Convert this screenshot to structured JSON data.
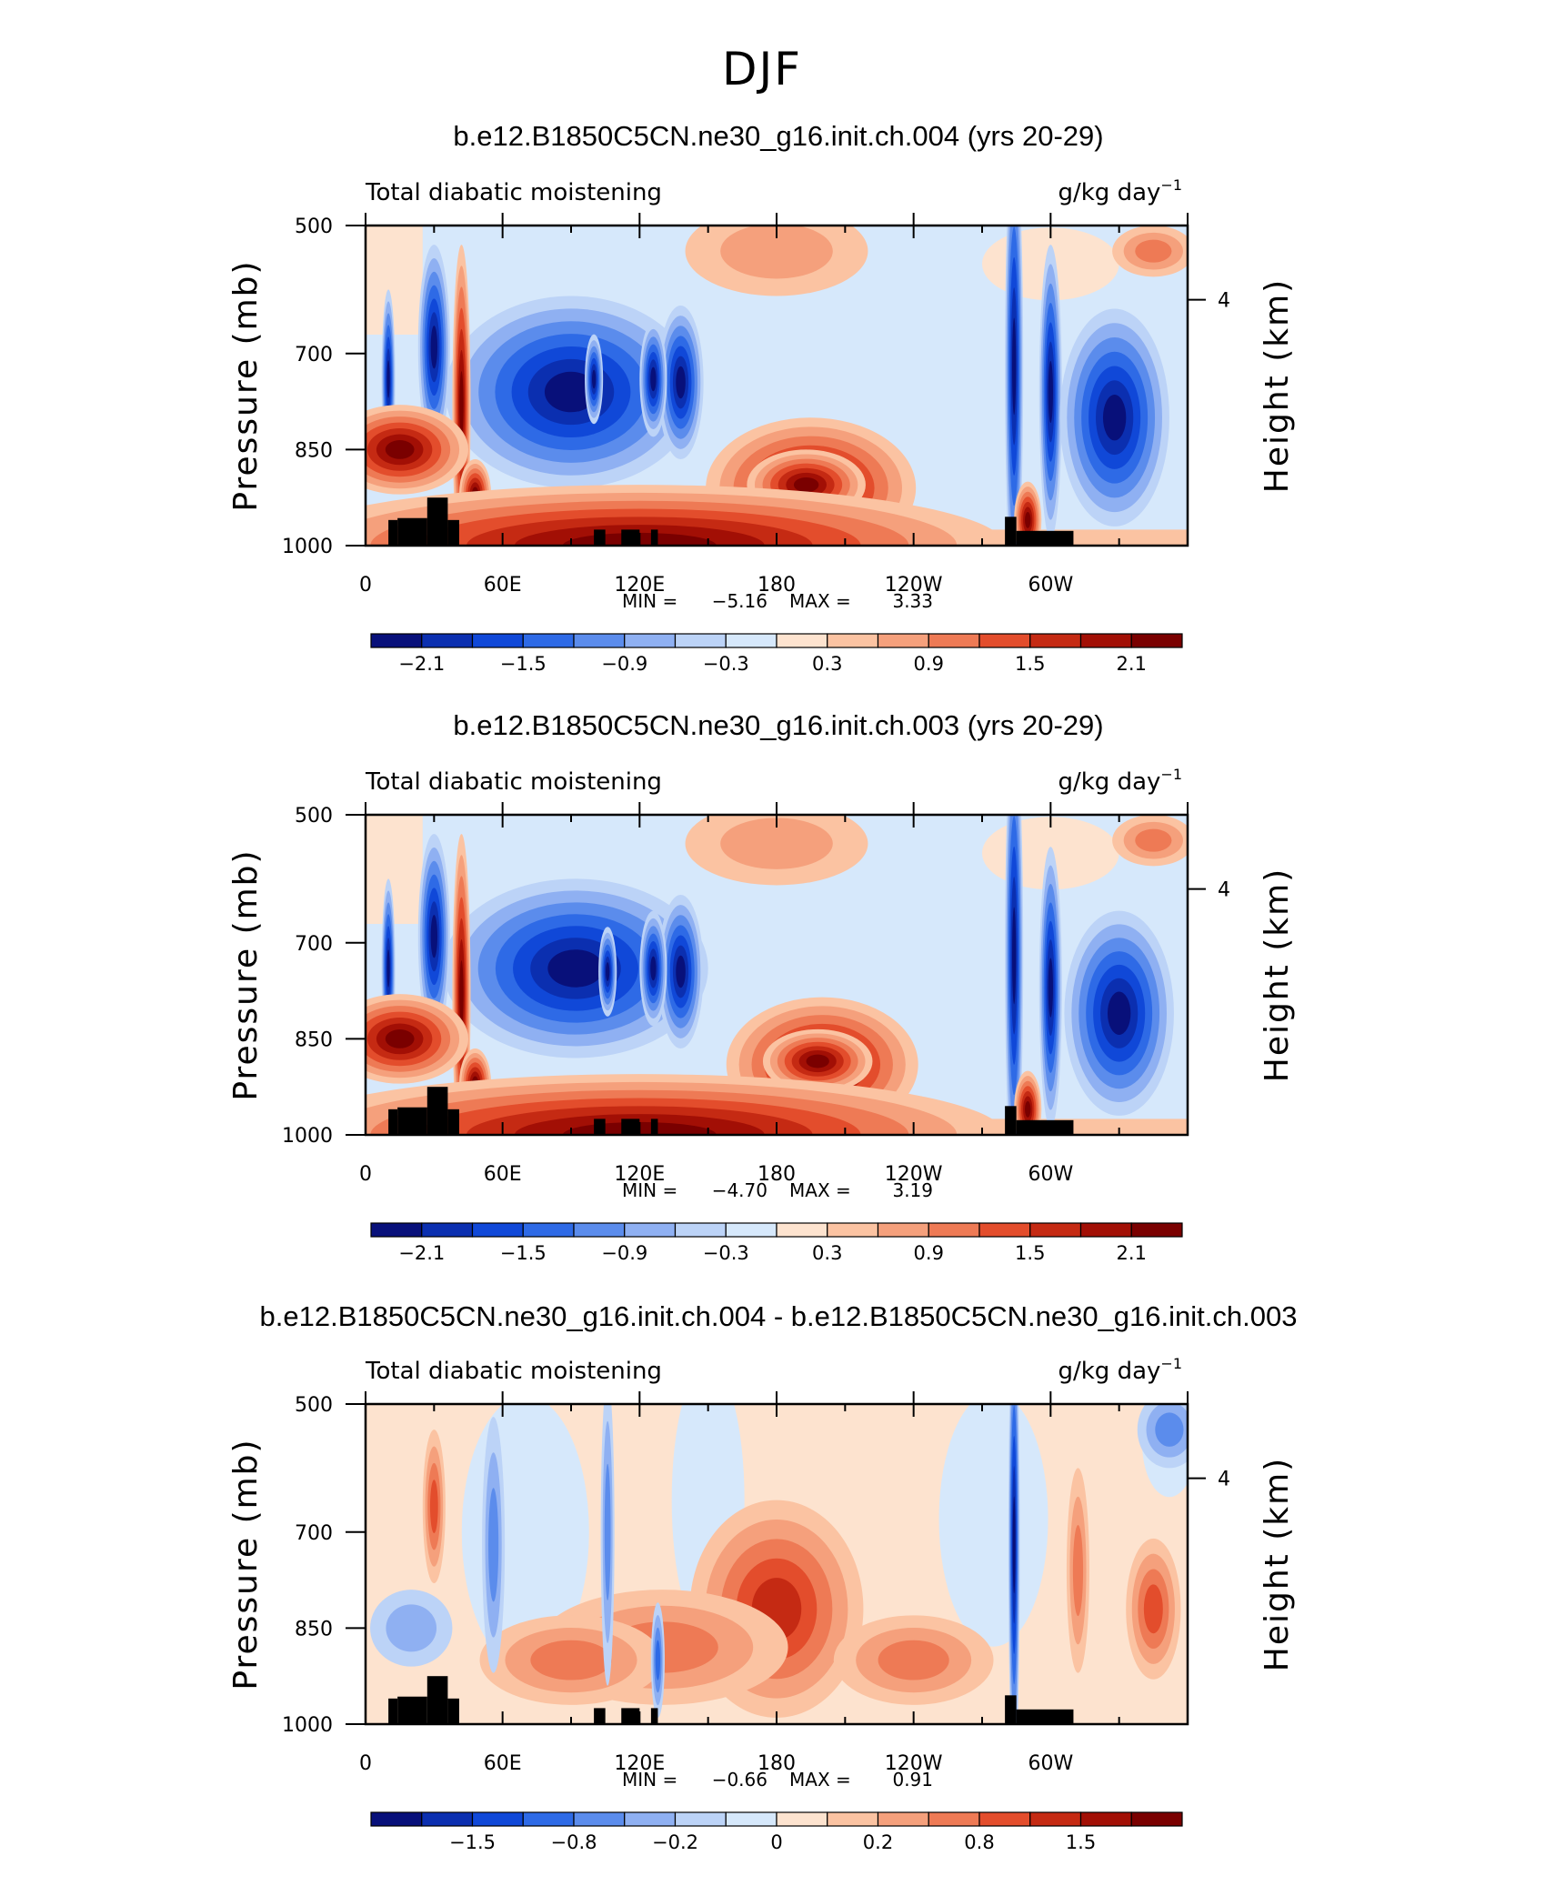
{
  "figure": {
    "title": "DJF",
    "colors": {
      "blue_dark": "#08107a",
      "red_dark": "#7a0000",
      "zero_blue": "#d6e8fb",
      "zero_red": "#fde3cf",
      "terrain": "#000000"
    }
  },
  "chart_data": [
    {
      "type": "heatmap",
      "title": "b.e12.B1850C5CN.ne30_g16.init.ch.004 (yrs 20-29)",
      "left_label": "Total diabatic moistening",
      "units_base": "g/kg day",
      "units_exp": "−1",
      "ylabel": "Pressure (mb)",
      "ylabel_right": "Height (km)",
      "yticks": [
        "500",
        "700",
        "850",
        "1000"
      ],
      "ytick_values": [
        500,
        700,
        850,
        1000
      ],
      "ylim": [
        1000,
        500
      ],
      "right_ticks": [
        "4"
      ],
      "right_tick_pressure": 616,
      "xlim": [
        0,
        360
      ],
      "xtick_values": [
        0,
        60,
        120,
        180,
        240,
        300
      ],
      "xticks": [
        "0",
        "60E",
        "120E",
        "180",
        "120W",
        "60W"
      ],
      "min_label": "MIN =",
      "min_value": "−5.16",
      "max_label": "MAX =",
      "max_value": "3.33",
      "colorbar": {
        "colors": [
          "#08107a",
          "#0b2fb0",
          "#1048d8",
          "#2e6ae6",
          "#5b8cec",
          "#8fb0f2",
          "#bcd3f7",
          "#d6e8fb",
          "#fde3cf",
          "#fbc3a2",
          "#f5a07c",
          "#ee7a55",
          "#e34d2c",
          "#c52a13",
          "#a20f05",
          "#7a0000"
        ],
        "labels": [
          "−2.1",
          "−1.5",
          "−0.9",
          "−0.3",
          "0.3",
          "0.9",
          "1.5",
          "2.1"
        ],
        "label_boxes": [
          1,
          3,
          5,
          7,
          9,
          11,
          13,
          15
        ]
      },
      "features": [
        {
          "lon": 195,
          "p": 910,
          "dlon": 46,
          "dp": 110,
          "level": 15
        },
        {
          "lon": 193,
          "p": 905,
          "dlon": 26,
          "dp": 55,
          "level": 3
        },
        {
          "lon": 90,
          "p": 760,
          "dlon": 55,
          "dp": 150,
          "level": -10
        },
        {
          "lon": 138,
          "p": 745,
          "dlon": 10,
          "dp": 120,
          "level": -6
        },
        {
          "lon": 126,
          "p": 740,
          "dlon": 6,
          "dp": 90,
          "level": -5
        },
        {
          "lon": 100,
          "p": 740,
          "dlon": 4,
          "dp": 70,
          "level": -4
        },
        {
          "lon": 284,
          "p": 720,
          "dlon": 4,
          "dp": 360,
          "level": -40
        },
        {
          "lon": 300,
          "p": 760,
          "dlon": 5,
          "dp": 230,
          "level": -8
        },
        {
          "lon": 328,
          "p": 800,
          "dlon": 24,
          "dp": 170,
          "level": -9
        },
        {
          "lon": 30,
          "p": 690,
          "dlon": 7,
          "dp": 160,
          "level": -12
        },
        {
          "lon": 10,
          "p": 740,
          "dlon": 3,
          "dp": 140,
          "level": -8
        },
        {
          "lon": 42,
          "p": 780,
          "dlon": 4,
          "dp": 250,
          "level": 8
        },
        {
          "lon": 48,
          "p": 920,
          "dlon": 7,
          "dp": 55,
          "level": 14
        },
        {
          "lon": 15,
          "p": 850,
          "dlon": 30,
          "dp": 70,
          "level": 6
        },
        {
          "lon": 120,
          "p": 1000,
          "dlon": 160,
          "dp": 95,
          "level": 5
        },
        {
          "lon": 290,
          "p": 960,
          "dlon": 6,
          "dp": 60,
          "level": 12
        },
        {
          "lon": 180,
          "p": 540,
          "dlon": 40,
          "dp": 70,
          "level": 1.2
        },
        {
          "lon": 345,
          "p": 540,
          "dlon": 18,
          "dp": 40,
          "level": 1.3
        }
      ],
      "terrain": [
        {
          "lon": 10,
          "lon2": 14,
          "p": 960
        },
        {
          "lon": 14,
          "lon2": 27,
          "p": 957
        },
        {
          "lon": 27,
          "lon2": 36,
          "p": 925
        },
        {
          "lon": 36,
          "lon2": 41,
          "p": 960
        },
        {
          "lon": 100,
          "lon2": 105,
          "p": 975
        },
        {
          "lon": 112,
          "lon2": 120,
          "p": 975
        },
        {
          "lon": 125,
          "lon2": 128,
          "p": 975
        },
        {
          "lon": 280,
          "lon2": 285,
          "p": 955
        },
        {
          "lon": 285,
          "lon2": 310,
          "p": 977
        }
      ]
    },
    {
      "type": "heatmap",
      "title": "b.e12.B1850C5CN.ne30_g16.init.ch.003 (yrs 20-29)",
      "left_label": "Total diabatic moistening",
      "units_base": "g/kg day",
      "units_exp": "−1",
      "ylabel": "Pressure (mb)",
      "ylabel_right": "Height (km)",
      "yticks": [
        "500",
        "700",
        "850",
        "1000"
      ],
      "ytick_values": [
        500,
        700,
        850,
        1000
      ],
      "ylim": [
        1000,
        500
      ],
      "right_ticks": [
        "4"
      ],
      "right_tick_pressure": 616,
      "xlim": [
        0,
        360
      ],
      "xtick_values": [
        0,
        60,
        120,
        180,
        240,
        300
      ],
      "xticks": [
        "0",
        "60E",
        "120E",
        "180",
        "120W",
        "60W"
      ],
      "min_label": "MIN =",
      "min_value": "−4.70",
      "max_label": "MAX =",
      "max_value": "3.19",
      "colorbar": {
        "colors": [
          "#08107a",
          "#0b2fb0",
          "#1048d8",
          "#2e6ae6",
          "#5b8cec",
          "#8fb0f2",
          "#bcd3f7",
          "#d6e8fb",
          "#fde3cf",
          "#fbc3a2",
          "#f5a07c",
          "#ee7a55",
          "#e34d2c",
          "#c52a13",
          "#a20f05",
          "#7a0000"
        ],
        "labels": [
          "−2.1",
          "−1.5",
          "−0.9",
          "−0.3",
          "0.3",
          "0.9",
          "1.5",
          "2.1"
        ],
        "label_boxes": [
          1,
          3,
          5,
          7,
          9,
          11,
          13,
          15
        ]
      },
      "features": [
        {
          "lon": 200,
          "p": 890,
          "dlon": 42,
          "dp": 105,
          "level": 14
        },
        {
          "lon": 198,
          "p": 885,
          "dlon": 24,
          "dp": 50,
          "level": 3
        },
        {
          "lon": 92,
          "p": 740,
          "dlon": 58,
          "dp": 140,
          "level": -10
        },
        {
          "lon": 138,
          "p": 745,
          "dlon": 10,
          "dp": 120,
          "level": -6
        },
        {
          "lon": 126,
          "p": 740,
          "dlon": 6,
          "dp": 90,
          "level": -5
        },
        {
          "lon": 106,
          "p": 745,
          "dlon": 4,
          "dp": 70,
          "level": -4
        },
        {
          "lon": 284,
          "p": 720,
          "dlon": 4,
          "dp": 360,
          "level": -40
        },
        {
          "lon": 300,
          "p": 770,
          "dlon": 5,
          "dp": 220,
          "level": -8
        },
        {
          "lon": 330,
          "p": 810,
          "dlon": 24,
          "dp": 160,
          "level": -9
        },
        {
          "lon": 30,
          "p": 690,
          "dlon": 7,
          "dp": 160,
          "level": -12
        },
        {
          "lon": 10,
          "p": 740,
          "dlon": 3,
          "dp": 140,
          "level": -8
        },
        {
          "lon": 42,
          "p": 780,
          "dlon": 4,
          "dp": 250,
          "level": 8
        },
        {
          "lon": 48,
          "p": 920,
          "dlon": 7,
          "dp": 55,
          "level": 14
        },
        {
          "lon": 15,
          "p": 850,
          "dlon": 30,
          "dp": 70,
          "level": 6
        },
        {
          "lon": 120,
          "p": 1000,
          "dlon": 160,
          "dp": 95,
          "level": 5
        },
        {
          "lon": 290,
          "p": 960,
          "dlon": 6,
          "dp": 60,
          "level": 12
        },
        {
          "lon": 180,
          "p": 545,
          "dlon": 40,
          "dp": 65,
          "level": 1.2
        },
        {
          "lon": 345,
          "p": 540,
          "dlon": 18,
          "dp": 40,
          "level": 1.3
        }
      ],
      "terrain": [
        {
          "lon": 10,
          "lon2": 14,
          "p": 960
        },
        {
          "lon": 14,
          "lon2": 27,
          "p": 957
        },
        {
          "lon": 27,
          "lon2": 36,
          "p": 925
        },
        {
          "lon": 36,
          "lon2": 41,
          "p": 960
        },
        {
          "lon": 100,
          "lon2": 105,
          "p": 975
        },
        {
          "lon": 112,
          "lon2": 120,
          "p": 975
        },
        {
          "lon": 125,
          "lon2": 128,
          "p": 975
        },
        {
          "lon": 280,
          "lon2": 285,
          "p": 955
        },
        {
          "lon": 285,
          "lon2": 310,
          "p": 977
        }
      ]
    },
    {
      "type": "heatmap",
      "title": "b.e12.B1850C5CN.ne30_g16.init.ch.004 - b.e12.B1850C5CN.ne30_g16.init.ch.003",
      "left_label": "Total diabatic moistening",
      "units_base": "g/kg day",
      "units_exp": "−1",
      "ylabel": "Pressure (mb)",
      "ylabel_right": "Height (km)",
      "yticks": [
        "500",
        "700",
        "850",
        "1000"
      ],
      "ytick_values": [
        500,
        700,
        850,
        1000
      ],
      "ylim": [
        1000,
        500
      ],
      "right_ticks": [
        "4"
      ],
      "right_tick_pressure": 616,
      "xlim": [
        0,
        360
      ],
      "xtick_values": [
        0,
        60,
        120,
        180,
        240,
        300
      ],
      "xticks": [
        "0",
        "60E",
        "120E",
        "180",
        "120W",
        "60W"
      ],
      "min_label": "MIN =",
      "min_value": "−0.66",
      "max_label": "MAX =",
      "max_value": "0.91",
      "colorbar": {
        "colors": [
          "#08107a",
          "#0b2fb0",
          "#1048d8",
          "#2e6ae6",
          "#5b8cec",
          "#8fb0f2",
          "#bcd3f7",
          "#d6e8fb",
          "#fde3cf",
          "#fbc3a2",
          "#f5a07c",
          "#ee7a55",
          "#e34d2c",
          "#c52a13",
          "#a20f05",
          "#7a0000"
        ],
        "labels": [
          "−1.5",
          "−0.8",
          "−0.2",
          "0",
          "0.2",
          "0.8",
          "1.5"
        ],
        "label_boxes": [
          2,
          4,
          6,
          8,
          10,
          12,
          14
        ]
      },
      "features": [
        {
          "lon": 180,
          "p": 820,
          "dlon": 38,
          "dp": 170,
          "level": 2.4
        },
        {
          "lon": 178,
          "p": 880,
          "dlon": 6,
          "dp": 22,
          "level": 2.2
        },
        {
          "lon": 130,
          "p": 880,
          "dlon": 55,
          "dp": 90,
          "level": 1.4
        },
        {
          "lon": 90,
          "p": 900,
          "dlon": 40,
          "dp": 70,
          "level": 1.2
        },
        {
          "lon": 30,
          "p": 660,
          "dlon": 5,
          "dp": 120,
          "level": 1.6
        },
        {
          "lon": 56,
          "p": 720,
          "dlon": 5,
          "dp": 200,
          "level": -1.2
        },
        {
          "lon": 106,
          "p": 700,
          "dlon": 3,
          "dp": 240,
          "level": -1.3
        },
        {
          "lon": 128,
          "p": 900,
          "dlon": 3,
          "dp": 90,
          "level": -1.6
        },
        {
          "lon": 284,
          "p": 720,
          "dlon": 2.5,
          "dp": 360,
          "level": -3.5
        },
        {
          "lon": 345,
          "p": 820,
          "dlon": 12,
          "dp": 110,
          "level": 1.6
        },
        {
          "lon": 352,
          "p": 540,
          "dlon": 14,
          "dp": 60,
          "level": -1.1
        },
        {
          "lon": 240,
          "p": 900,
          "dlon": 35,
          "dp": 70,
          "level": 1.2
        },
        {
          "lon": 20,
          "p": 850,
          "dlon": 18,
          "dp": 60,
          "level": -1.0
        },
        {
          "lon": 312,
          "p": 760,
          "dlon": 5,
          "dp": 160,
          "level": 1.2
        }
      ],
      "terrain": [
        {
          "lon": 10,
          "lon2": 14,
          "p": 960
        },
        {
          "lon": 14,
          "lon2": 27,
          "p": 957
        },
        {
          "lon": 27,
          "lon2": 36,
          "p": 925
        },
        {
          "lon": 36,
          "lon2": 41,
          "p": 960
        },
        {
          "lon": 100,
          "lon2": 105,
          "p": 975
        },
        {
          "lon": 112,
          "lon2": 120,
          "p": 975
        },
        {
          "lon": 125,
          "lon2": 128,
          "p": 975
        },
        {
          "lon": 280,
          "lon2": 285,
          "p": 955
        },
        {
          "lon": 285,
          "lon2": 310,
          "p": 977
        }
      ]
    }
  ]
}
